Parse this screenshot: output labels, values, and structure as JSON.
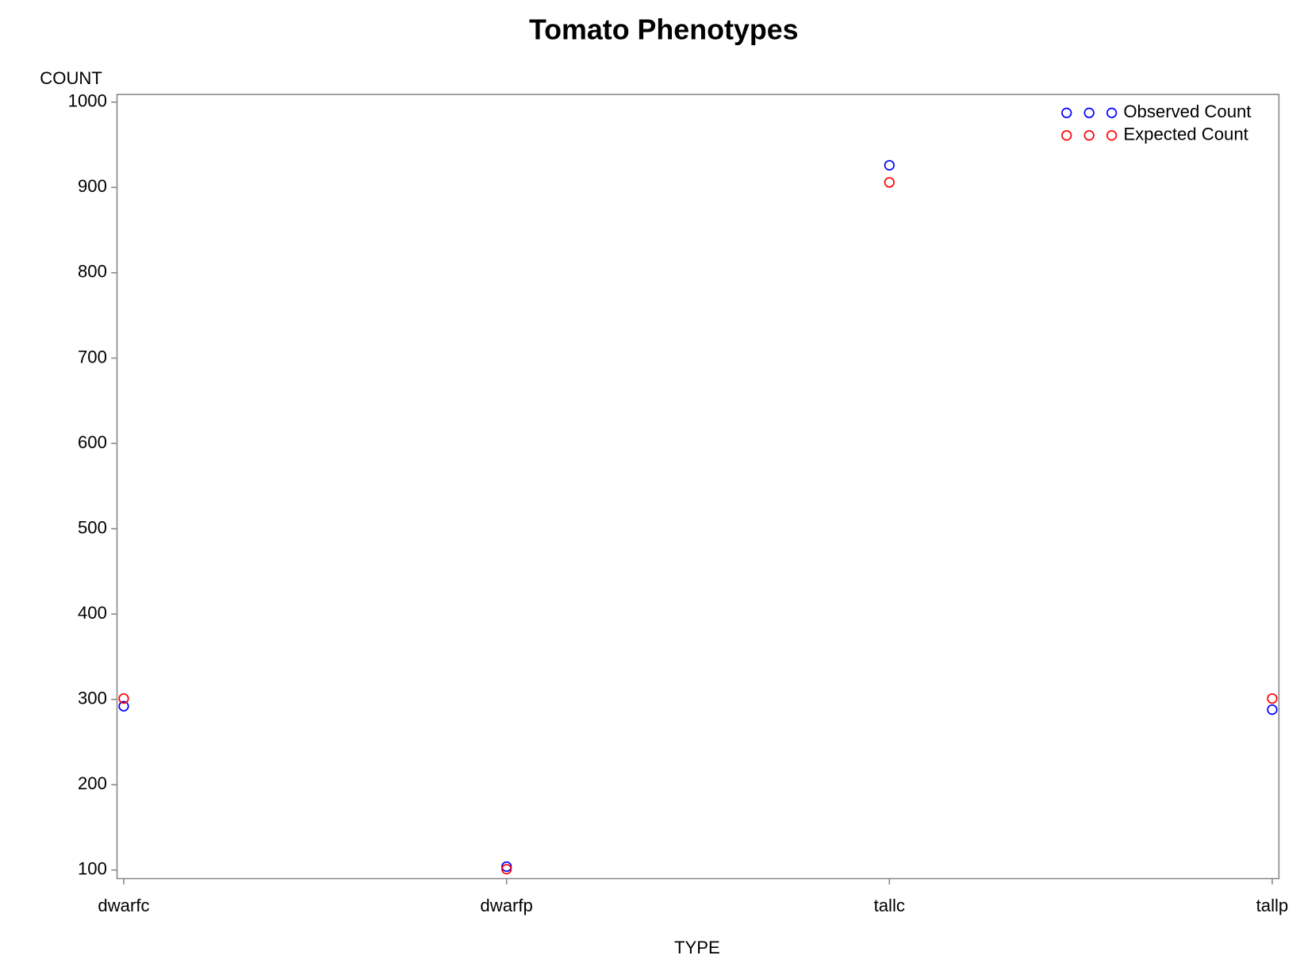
{
  "chart_data": {
    "type": "scatter",
    "title": "Tomato Phenotypes",
    "x_label": "TYPE",
    "y_label": "COUNT",
    "categories": [
      "dwarfc",
      "dwarfp",
      "tallc",
      "tallp"
    ],
    "series": [
      {
        "name": "Observed Count",
        "color": "#0000ff",
        "values": [
          292,
          104,
          926,
          288
        ]
      },
      {
        "name": "Expected Count",
        "color": "#ff0000",
        "values": [
          301,
          101,
          906,
          301
        ]
      }
    ],
    "ylim": [
      90,
      1009
    ],
    "yticks": [
      100,
      200,
      300,
      400,
      500,
      600,
      700,
      800,
      900,
      1000
    ],
    "legend": "top-right"
  }
}
